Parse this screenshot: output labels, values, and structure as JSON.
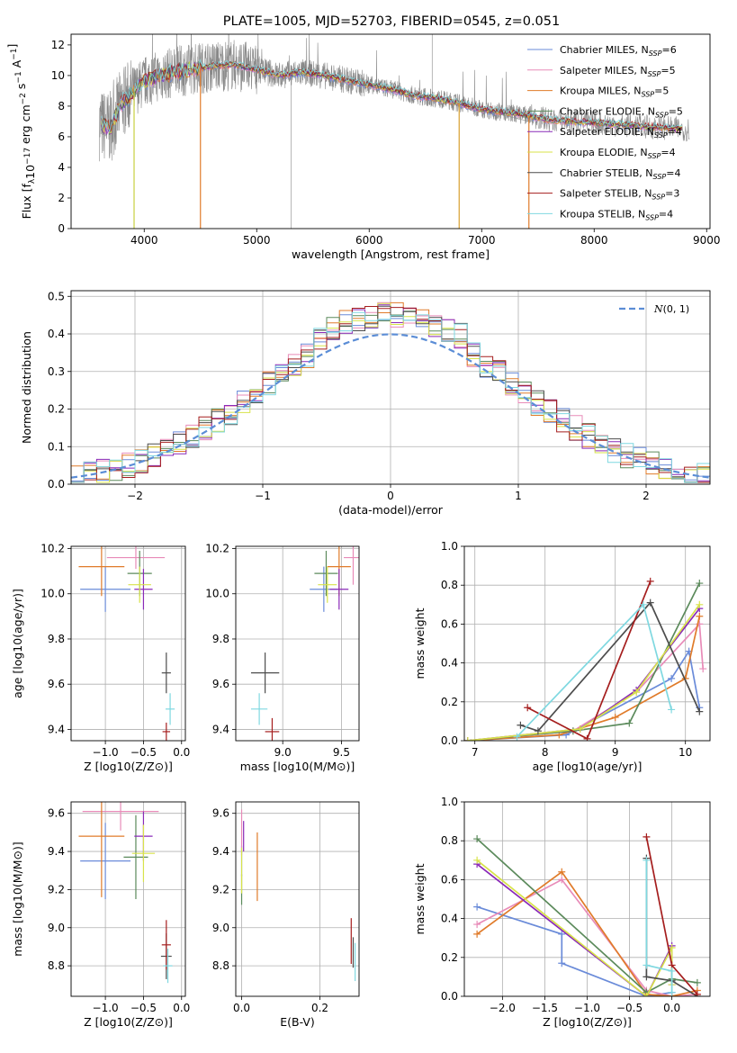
{
  "figure": {
    "title": "PLATE=1005, MJD=52703, FIBERID=0545, z=0.051"
  },
  "legend": {
    "entries": [
      {
        "name": "Chabrier MILES, N",
        "n": "6",
        "color": "#6a8bd9"
      },
      {
        "name": "Salpeter MILES, N",
        "n": "5",
        "color": "#e88bb8"
      },
      {
        "name": "Kroupa MILES, N",
        "n": "5",
        "color": "#e07b2a"
      },
      {
        "name": "Chabrier ELODIE, N",
        "n": "5",
        "color": "#5b8a5b"
      },
      {
        "name": "Salpeter ELODIE, N",
        "n": "4",
        "color": "#8a2ab8"
      },
      {
        "name": "Kroupa ELODIE, N",
        "n": "4",
        "color": "#d8e34a"
      },
      {
        "name": "Chabrier STELIB, N",
        "n": "4",
        "color": "#4d4d4d"
      },
      {
        "name": "Salpeter STELIB, N",
        "n": "3",
        "color": "#a51e1e"
      },
      {
        "name": "Kroupa STELIB, N",
        "n": "4",
        "color": "#7fd8e0"
      }
    ],
    "sub": "SSP",
    "data_color": "#888888"
  },
  "chart_data": [
    {
      "id": "spectrum",
      "type": "line",
      "xlabel": "wavelength [Angstrom, rest frame]",
      "ylabel": "Flux [f",
      "xlim": [
        3350,
        9030
      ],
      "ylim": [
        0,
        12.7
      ],
      "xticks": [
        4000,
        5000,
        6000,
        7000,
        8000,
        9000
      ],
      "yticks": [
        0,
        2,
        4,
        6,
        8,
        10,
        12
      ],
      "continuum": {
        "x": [
          3600,
          3700,
          3800,
          3900,
          4000,
          4100,
          4200,
          4400,
          4600,
          4800,
          5000,
          5200,
          5400,
          5600,
          5800,
          6000,
          6200,
          6400,
          6600,
          6800,
          7000,
          7200,
          7400,
          7600,
          7800,
          8000,
          8200,
          8400,
          8600,
          8800
        ],
        "y": [
          6.8,
          6.6,
          8.2,
          8.9,
          9.6,
          9.9,
          10.1,
          10.4,
          10.6,
          10.7,
          10.4,
          10.0,
          10.2,
          10.0,
          9.7,
          9.4,
          9.1,
          8.7,
          8.5,
          8.2,
          7.8,
          7.6,
          7.4,
          7.1,
          7.0,
          6.9,
          6.8,
          6.7,
          6.6,
          6.5
        ]
      },
      "grid": false
    },
    {
      "id": "residuals",
      "type": "step",
      "xlabel": "(data-model)/error",
      "ylabel": "Normed distribution",
      "xlim": [
        -2.5,
        2.5
      ],
      "ylim": [
        0,
        0.515
      ],
      "xticks": [
        -2,
        -1,
        0,
        1,
        2
      ],
      "yticks": [
        0.0,
        0.1,
        0.2,
        0.3,
        0.4,
        0.5
      ],
      "bins": {
        "start": -2.5,
        "width": 0.1
      },
      "legend": "top-right",
      "normal_label": "(0, 1)",
      "normal_color": "#5b8dd6",
      "grid": true
    },
    {
      "id": "age-vs-Z",
      "type": "scatter",
      "xlabel": "Z [log",
      "ylabel": "age  [log",
      "xlim": [
        -1.45,
        0.05
      ],
      "ylim": [
        9.35,
        10.21
      ],
      "xticks": [
        -1.0,
        -0.5,
        0.0
      ],
      "yticks": [
        9.4,
        9.6,
        9.8,
        10.0,
        10.2
      ],
      "points": [
        {
          "x": -1.0,
          "y": 10.02,
          "xerr": 0.33,
          "yerr": 0.1,
          "color": "#6a8bd9"
        },
        {
          "x": -0.6,
          "y": 10.16,
          "xerr": 0.38,
          "yerr": 0.05,
          "color": "#e88bb8"
        },
        {
          "x": -1.05,
          "y": 10.12,
          "xerr": 0.3,
          "yerr": 0.13,
          "color": "#e07b2a"
        },
        {
          "x": -0.55,
          "y": 10.09,
          "xerr": 0.16,
          "yerr": 0.1,
          "color": "#5b8a5b"
        },
        {
          "x": -0.5,
          "y": 10.02,
          "xerr": 0.12,
          "yerr": 0.09,
          "color": "#8a2ab8"
        },
        {
          "x": -0.55,
          "y": 10.04,
          "xerr": 0.15,
          "yerr": 0.08,
          "color": "#d8e34a"
        },
        {
          "x": -0.2,
          "y": 9.65,
          "xerr": 0.06,
          "yerr": 0.09,
          "color": "#4d4d4d"
        },
        {
          "x": -0.2,
          "y": 9.39,
          "xerr": 0.05,
          "yerr": 0.04,
          "color": "#a51e1e"
        },
        {
          "x": -0.15,
          "y": 9.49,
          "xerr": 0.06,
          "yerr": 0.07,
          "color": "#7fd8e0"
        }
      ],
      "grid": true
    },
    {
      "id": "age-vs-mass",
      "type": "scatter",
      "xlabel": "mass [log",
      "ylabel": "",
      "xlim": [
        8.6,
        9.65
      ],
      "ylim": [
        9.35,
        10.21
      ],
      "xticks": [
        9.0,
        9.5
      ],
      "yticks": [
        9.4,
        9.6,
        9.8,
        10.0,
        10.2
      ],
      "points": [
        {
          "x": 9.35,
          "y": 10.02,
          "xerr": 0.12,
          "yerr": 0.1,
          "color": "#6a8bd9"
        },
        {
          "x": 9.6,
          "y": 10.16,
          "xerr": 0.08,
          "yerr": 0.12,
          "color": "#e88bb8"
        },
        {
          "x": 9.48,
          "y": 10.12,
          "xerr": 0.1,
          "yerr": 0.13,
          "color": "#e07b2a"
        },
        {
          "x": 9.37,
          "y": 10.09,
          "xerr": 0.1,
          "yerr": 0.1,
          "color": "#5b8a5b"
        },
        {
          "x": 9.48,
          "y": 10.02,
          "xerr": 0.08,
          "yerr": 0.09,
          "color": "#8a2ab8"
        },
        {
          "x": 9.38,
          "y": 10.04,
          "xerr": 0.08,
          "yerr": 0.08,
          "color": "#d8e34a"
        },
        {
          "x": 8.85,
          "y": 9.65,
          "xerr": 0.12,
          "yerr": 0.09,
          "color": "#4d4d4d"
        },
        {
          "x": 8.91,
          "y": 9.39,
          "xerr": 0.06,
          "yerr": 0.06,
          "color": "#a51e1e"
        },
        {
          "x": 8.8,
          "y": 9.49,
          "xerr": 0.07,
          "yerr": 0.07,
          "color": "#7fd8e0"
        }
      ],
      "grid": true
    },
    {
      "id": "weight-vs-age",
      "type": "line",
      "xlabel": "age  [log",
      "ylabel": "mass weight",
      "xlim": [
        6.85,
        10.35
      ],
      "ylim": [
        0,
        1.0
      ],
      "xticks": [
        7,
        8,
        9,
        10
      ],
      "yticks": [
        0.0,
        0.2,
        0.4,
        0.6,
        0.8,
        1.0
      ],
      "series": [
        {
          "color": "#6a8bd9",
          "x": [
            6.9,
            8.3,
            9.8,
            10.05,
            10.2
          ],
          "y": [
            0.0,
            0.03,
            0.32,
            0.46,
            0.17
          ]
        },
        {
          "color": "#e88bb8",
          "x": [
            6.9,
            8.4,
            9.3,
            10.2,
            10.25
          ],
          "y": [
            0.0,
            0.05,
            0.25,
            0.6,
            0.37
          ]
        },
        {
          "color": "#e07b2a",
          "x": [
            6.9,
            8.2,
            9.0,
            10.0,
            10.2
          ],
          "y": [
            0.0,
            0.03,
            0.12,
            0.32,
            0.64
          ]
        },
        {
          "color": "#5b8a5b",
          "x": [
            6.9,
            8.4,
            9.2,
            10.2
          ],
          "y": [
            0.0,
            0.05,
            0.09,
            0.81
          ]
        },
        {
          "color": "#8a2ab8",
          "x": [
            6.9,
            8.5,
            9.3,
            10.2
          ],
          "y": [
            0.0,
            0.06,
            0.26,
            0.68
          ]
        },
        {
          "color": "#d8e34a",
          "x": [
            6.9,
            8.5,
            9.3,
            10.2
          ],
          "y": [
            0.0,
            0.06,
            0.25,
            0.7
          ]
        },
        {
          "color": "#4d4d4d",
          "x": [
            7.65,
            7.9,
            9.5,
            10.2
          ],
          "y": [
            0.08,
            0.05,
            0.71,
            0.15
          ]
        },
        {
          "color": "#a51e1e",
          "x": [
            7.75,
            8.6,
            9.5
          ],
          "y": [
            0.17,
            0.01,
            0.82
          ]
        },
        {
          "color": "#7fd8e0",
          "x": [
            7.6,
            9.4,
            9.8
          ],
          "y": [
            0.02,
            0.7,
            0.16
          ]
        }
      ],
      "grid": true
    },
    {
      "id": "mass-vs-Z",
      "type": "scatter",
      "xlabel": "Z [log",
      "ylabel": "mass [log",
      "xlim": [
        -1.45,
        0.05
      ],
      "ylim": [
        8.64,
        9.66
      ],
      "xticks": [
        -1.0,
        -0.5,
        0.0
      ],
      "yticks": [
        8.8,
        9.0,
        9.2,
        9.4,
        9.6
      ],
      "points": [
        {
          "x": -1.0,
          "y": 9.35,
          "xerr": 0.33,
          "yerr": 0.2,
          "color": "#6a8bd9"
        },
        {
          "x": -0.8,
          "y": 9.61,
          "xerr": 0.5,
          "yerr": 0.1,
          "color": "#e88bb8"
        },
        {
          "x": -1.05,
          "y": 9.48,
          "xerr": 0.3,
          "yerr": 0.32,
          "color": "#e07b2a"
        },
        {
          "x": -0.6,
          "y": 9.37,
          "xerr": 0.16,
          "yerr": 0.22,
          "color": "#5b8a5b"
        },
        {
          "x": -0.5,
          "y": 9.48,
          "xerr": 0.12,
          "yerr": 0.13,
          "color": "#8a2ab8"
        },
        {
          "x": -0.5,
          "y": 9.39,
          "xerr": 0.15,
          "yerr": 0.15,
          "color": "#d8e34a"
        },
        {
          "x": -0.2,
          "y": 8.85,
          "xerr": 0.07,
          "yerr": 0.12,
          "color": "#4d4d4d"
        },
        {
          "x": -0.2,
          "y": 8.91,
          "xerr": 0.06,
          "yerr": 0.13,
          "color": "#a51e1e"
        },
        {
          "x": -0.18,
          "y": 8.8,
          "xerr": 0.06,
          "yerr": 0.09,
          "color": "#7fd8e0"
        }
      ],
      "grid": true
    },
    {
      "id": "mass-vs-EBV",
      "type": "scatter",
      "xlabel": "E(B-V)",
      "ylabel": "",
      "xlim": [
        -0.015,
        0.3
      ],
      "ylim": [
        8.64,
        9.66
      ],
      "xticks": [
        0.0,
        0.2
      ],
      "yticks": [
        8.8,
        9.0,
        9.2,
        9.4,
        9.6
      ],
      "points": [
        {
          "x": 0.0,
          "y": 9.35,
          "xerr": 0.0,
          "yerr": 0.08,
          "color": "#6a8bd9"
        },
        {
          "x": 0.0,
          "y": 9.5,
          "xerr": 0.0,
          "yerr": 0.12,
          "color": "#e88bb8"
        },
        {
          "x": 0.04,
          "y": 9.32,
          "xerr": 0.0,
          "yerr": 0.18,
          "color": "#e07b2a"
        },
        {
          "x": 0.0,
          "y": 9.2,
          "xerr": 0.0,
          "yerr": 0.08,
          "color": "#5b8a5b"
        },
        {
          "x": 0.005,
          "y": 9.48,
          "xerr": 0.0,
          "yerr": 0.08,
          "color": "#8a2ab8"
        },
        {
          "x": 0.0,
          "y": 9.3,
          "xerr": 0.0,
          "yerr": 0.12,
          "color": "#d8e34a"
        },
        {
          "x": 0.285,
          "y": 8.87,
          "xerr": 0.0,
          "yerr": 0.08,
          "color": "#4d4d4d"
        },
        {
          "x": 0.28,
          "y": 8.93,
          "xerr": 0.0,
          "yerr": 0.12,
          "color": "#a51e1e"
        },
        {
          "x": 0.29,
          "y": 8.82,
          "xerr": 0.0,
          "yerr": 0.1,
          "color": "#7fd8e0"
        }
      ],
      "grid": true
    },
    {
      "id": "weight-vs-Z",
      "type": "line",
      "xlabel": "Z [log",
      "ylabel": "mass weight",
      "xlim": [
        -2.45,
        0.45
      ],
      "ylim": [
        0,
        1.0
      ],
      "xticks": [
        -2.0,
        -1.5,
        -1.0,
        -0.5,
        0.0
      ],
      "yticks": [
        0.0,
        0.2,
        0.4,
        0.6,
        0.8,
        1.0
      ],
      "series": [
        {
          "color": "#6a8bd9",
          "x": [
            -2.3,
            -1.3,
            -1.3,
            -0.3,
            0.0
          ],
          "y": [
            0.46,
            0.32,
            0.17,
            0.0,
            0.02
          ]
        },
        {
          "color": "#e88bb8",
          "x": [
            -2.3,
            -1.3,
            -0.3,
            0.0,
            0.3
          ],
          "y": [
            0.37,
            0.6,
            0.03,
            0.0,
            0.01
          ]
        },
        {
          "color": "#e07b2a",
          "x": [
            -2.3,
            -1.3,
            -0.3,
            0.0,
            0.3
          ],
          "y": [
            0.32,
            0.64,
            0.01,
            0.0,
            0.03
          ]
        },
        {
          "color": "#5b8a5b",
          "x": [
            -2.3,
            -0.3,
            0.0,
            0.3
          ],
          "y": [
            0.81,
            0.02,
            0.09,
            0.07
          ]
        },
        {
          "color": "#8a2ab8",
          "x": [
            -2.3,
            -0.3,
            0.0,
            0.0
          ],
          "y": [
            0.68,
            0.0,
            0.26,
            0.06
          ]
        },
        {
          "color": "#d8e34a",
          "x": [
            -2.3,
            -0.3,
            0.0,
            0.0
          ],
          "y": [
            0.7,
            0.0,
            0.25,
            0.06
          ]
        },
        {
          "color": "#4d4d4d",
          "x": [
            -0.3,
            -0.3,
            0.0,
            0.3
          ],
          "y": [
            0.71,
            0.1,
            0.08,
            0.0
          ]
        },
        {
          "color": "#a51e1e",
          "x": [
            -0.3,
            0.0,
            0.3
          ],
          "y": [
            0.82,
            0.16,
            0.01
          ]
        },
        {
          "color": "#7fd8e0",
          "x": [
            -0.3,
            -0.3,
            0.0,
            0.0
          ],
          "y": [
            0.7,
            0.16,
            0.13,
            0.02
          ]
        }
      ],
      "grid": true
    }
  ]
}
